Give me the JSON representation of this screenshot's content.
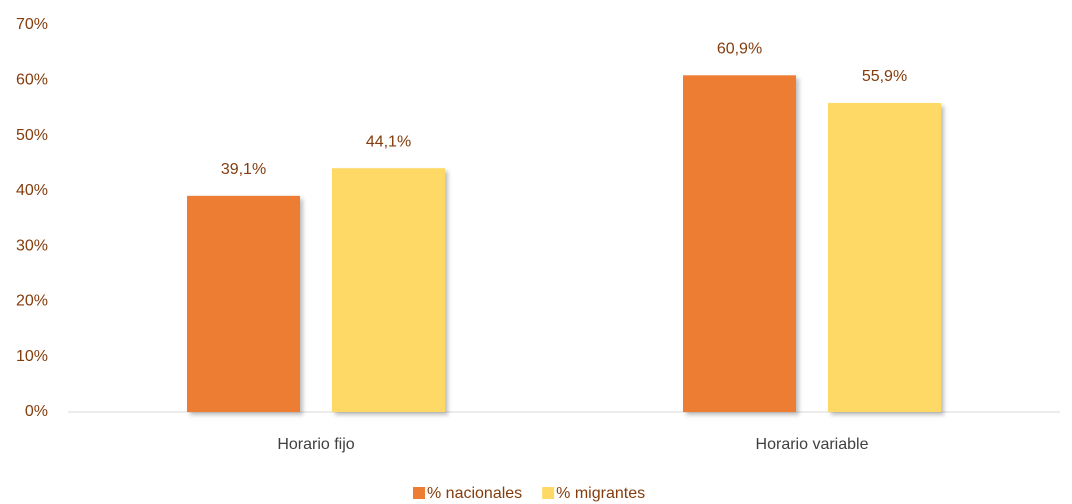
{
  "chart_data": {
    "type": "bar",
    "categories": [
      "Horario fijo",
      "Horario variable"
    ],
    "series": [
      {
        "name": "% nacionales",
        "color": "#ed7d31",
        "values": [
          39.1,
          60.9
        ],
        "value_labels": [
          "39,1%",
          "60,9%"
        ]
      },
      {
        "name": "% migrantes",
        "color": "#ffd966",
        "values": [
          44.1,
          55.9
        ],
        "value_labels": [
          "44,1%",
          "55,9%"
        ]
      }
    ],
    "ylim": [
      0,
      70
    ],
    "yticks": [
      {
        "value": 0,
        "label": "0%"
      },
      {
        "value": 10,
        "label": "10%"
      },
      {
        "value": 20,
        "label": "20%"
      },
      {
        "value": 30,
        "label": "30%"
      },
      {
        "value": 40,
        "label": "40%"
      },
      {
        "value": 50,
        "label": "50%"
      },
      {
        "value": 60,
        "label": "60%"
      },
      {
        "value": 70,
        "label": "70%"
      }
    ],
    "grid": false,
    "legend": "bottom"
  }
}
